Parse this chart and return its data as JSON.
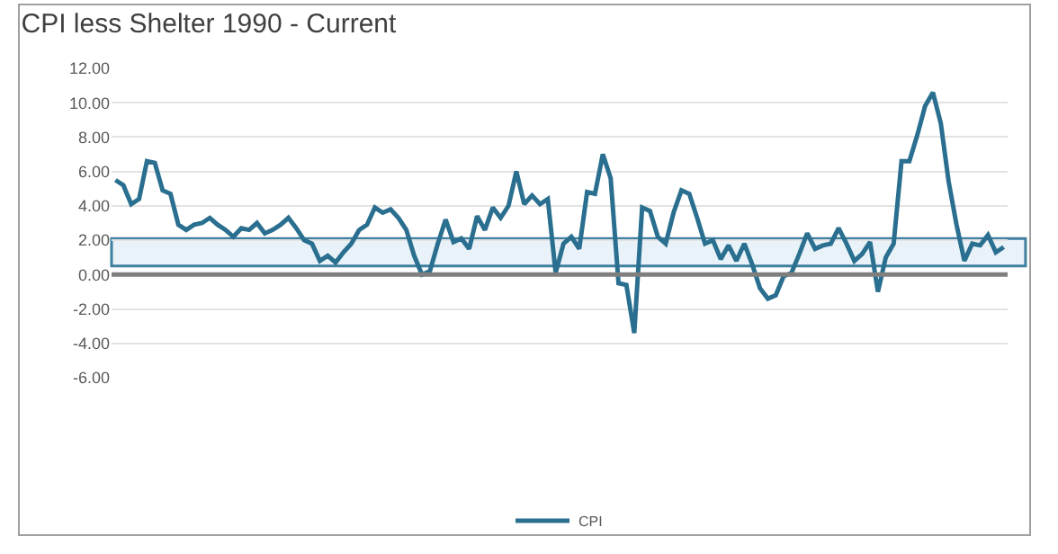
{
  "chart_data": {
    "type": "line",
    "title": "CPI less Shelter 1990 - Current",
    "categories": [
      null,
      null,
      null,
      null,
      null,
      null,
      null,
      null,
      null,
      null,
      null,
      null,
      null,
      null,
      null,
      null,
      null,
      null,
      null,
      null,
      null,
      null,
      null,
      null,
      null,
      null,
      null,
      null,
      null,
      null,
      null,
      null,
      null,
      null,
      null,
      null,
      null,
      null,
      null,
      null,
      null,
      null,
      null,
      null,
      null,
      null,
      null,
      null,
      null,
      null,
      null,
      null,
      null,
      null,
      null,
      null,
      null,
      null,
      null,
      null,
      null,
      null,
      null,
      null,
      null,
      null,
      null,
      null,
      null,
      null,
      null,
      null,
      null,
      null,
      null,
      null,
      null,
      null,
      null,
      null,
      null,
      null,
      null,
      null,
      null,
      null,
      null,
      null,
      null,
      null,
      null,
      null,
      null,
      null,
      null,
      null,
      null,
      null,
      null,
      null,
      null,
      null,
      null,
      null,
      null,
      null,
      null,
      null,
      null,
      null,
      null,
      null,
      null,
      null
    ],
    "series": [
      {
        "name": "CPI",
        "color": "#2a6f8f",
        "values": [
          5.5,
          5.2,
          4.1,
          4.4,
          6.6,
          6.5,
          4.9,
          4.7,
          2.9,
          2.6,
          2.9,
          3.0,
          3.3,
          2.9,
          2.6,
          2.2,
          2.7,
          2.6,
          3.0,
          2.4,
          2.6,
          2.9,
          3.3,
          2.7,
          2.0,
          1.8,
          0.8,
          1.1,
          0.7,
          1.3,
          1.8,
          2.6,
          2.9,
          3.9,
          3.6,
          3.8,
          3.3,
          2.6,
          1.1,
          0.0,
          0.2,
          1.8,
          3.2,
          1.9,
          2.1,
          1.5,
          3.4,
          2.6,
          3.9,
          3.3,
          4.0,
          6.0,
          4.1,
          4.6,
          4.1,
          4.4,
          0.1,
          1.8,
          2.2,
          1.5,
          4.8,
          4.7,
          7.0,
          5.6,
          -0.5,
          -0.6,
          -3.4,
          3.9,
          3.7,
          2.2,
          1.8,
          3.6,
          4.9,
          4.7,
          3.3,
          1.8,
          2.0,
          0.9,
          1.7,
          0.8,
          1.8,
          0.6,
          -0.8,
          -1.4,
          -1.2,
          -0.1,
          0.1,
          1.2,
          2.4,
          1.5,
          1.7,
          1.8,
          2.7,
          1.8,
          0.8,
          1.2,
          1.9,
          -1.0,
          1.0,
          1.8,
          6.6,
          6.6,
          8.1,
          9.8,
          10.6,
          8.8,
          5.4,
          2.9,
          0.8,
          1.8,
          1.7,
          2.3,
          1.3,
          1.6
        ]
      }
    ],
    "ylim": [
      -6,
      12
    ],
    "yticks": [
      {
        "value": -6,
        "label": "-6.00"
      },
      {
        "value": -4,
        "label": "-4.00"
      },
      {
        "value": -2,
        "label": "-2.00"
      },
      {
        "value": 0,
        "label": "0.00"
      },
      {
        "value": 2,
        "label": "2.00"
      },
      {
        "value": 4,
        "label": "4.00"
      },
      {
        "value": 6,
        "label": "6.00"
      },
      {
        "value": 8,
        "label": "8.00"
      },
      {
        "value": 10,
        "label": "10.00"
      },
      {
        "value": 12,
        "label": "12.00"
      }
    ],
    "ref_lines": [
      {
        "axis": "y",
        "value": 0,
        "color": "#7f7f7f"
      }
    ],
    "bands": [
      {
        "axis": "y",
        "from": 0.5,
        "to": 2.1,
        "color": "#e8f2f8"
      }
    ],
    "grid": "y",
    "legend": "bottom",
    "tick_labels": "y",
    "marker": "none",
    "line_style": "solid"
  }
}
